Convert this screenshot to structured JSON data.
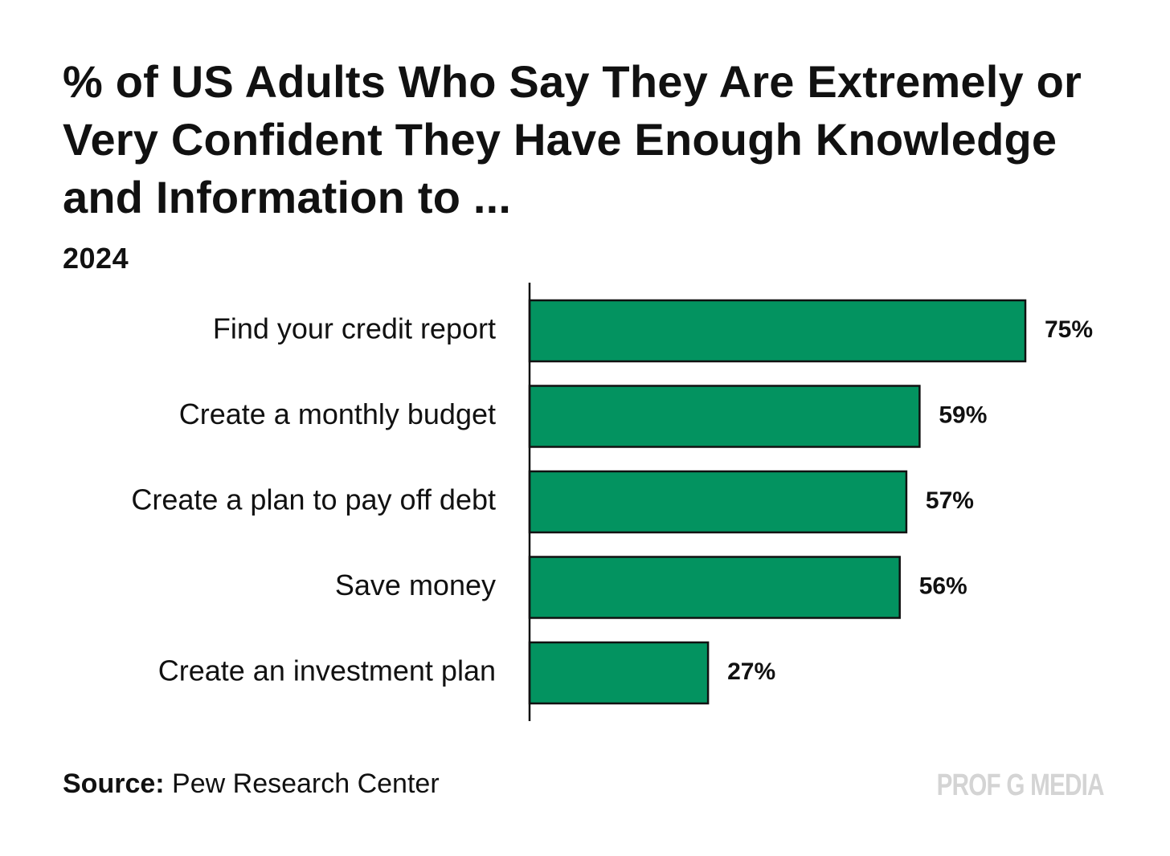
{
  "chart_data": {
    "type": "bar",
    "orientation": "horizontal",
    "title": "% of US Adults Who Say They Are Extremely or Very Confident They Have Enough Knowledge and Information to ...",
    "subtitle": "2024",
    "categories": [
      "Find your credit report",
      "Create a monthly budget",
      "Create a plan to pay off debt",
      "Save money",
      "Create an investment plan"
    ],
    "values": [
      75,
      59,
      57,
      56,
      27
    ],
    "value_labels": [
      "75%",
      "59%",
      "57%",
      "56%",
      "27%"
    ],
    "xlim": [
      0,
      75
    ],
    "grid": false,
    "bar_color": "#039360",
    "bar_outline_color": "#111111"
  },
  "source": {
    "label": "Source:",
    "text": "Pew Research Center"
  },
  "watermark": "PROF G MEDIA"
}
